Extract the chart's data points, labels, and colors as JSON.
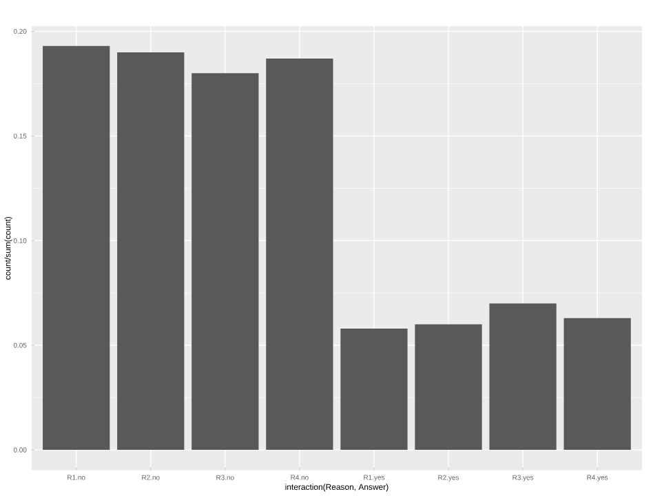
{
  "chart_data": {
    "type": "bar",
    "xlabel": "interaction(Reason, Answer)",
    "ylabel": "count/sum(count)",
    "categories": [
      "R1.no",
      "R2.no",
      "R3.no",
      "R4.no",
      "R1.yes",
      "R2.yes",
      "R3.yes",
      "R4.yes"
    ],
    "values": [
      0.193,
      0.19,
      0.18,
      0.187,
      0.058,
      0.06,
      0.07,
      0.063
    ],
    "color": "#595959",
    "ylim": [
      -0.0097,
      0.2025
    ],
    "yticks": [
      {
        "value": 0,
        "label": "0.00"
      },
      {
        "value": 0.05,
        "label": "0.05"
      },
      {
        "value": 0.1,
        "label": "0.10"
      },
      {
        "value": 0.15,
        "label": "0.15"
      },
      {
        "value": 0.2,
        "label": "0.20"
      }
    ],
    "grid": true
  }
}
